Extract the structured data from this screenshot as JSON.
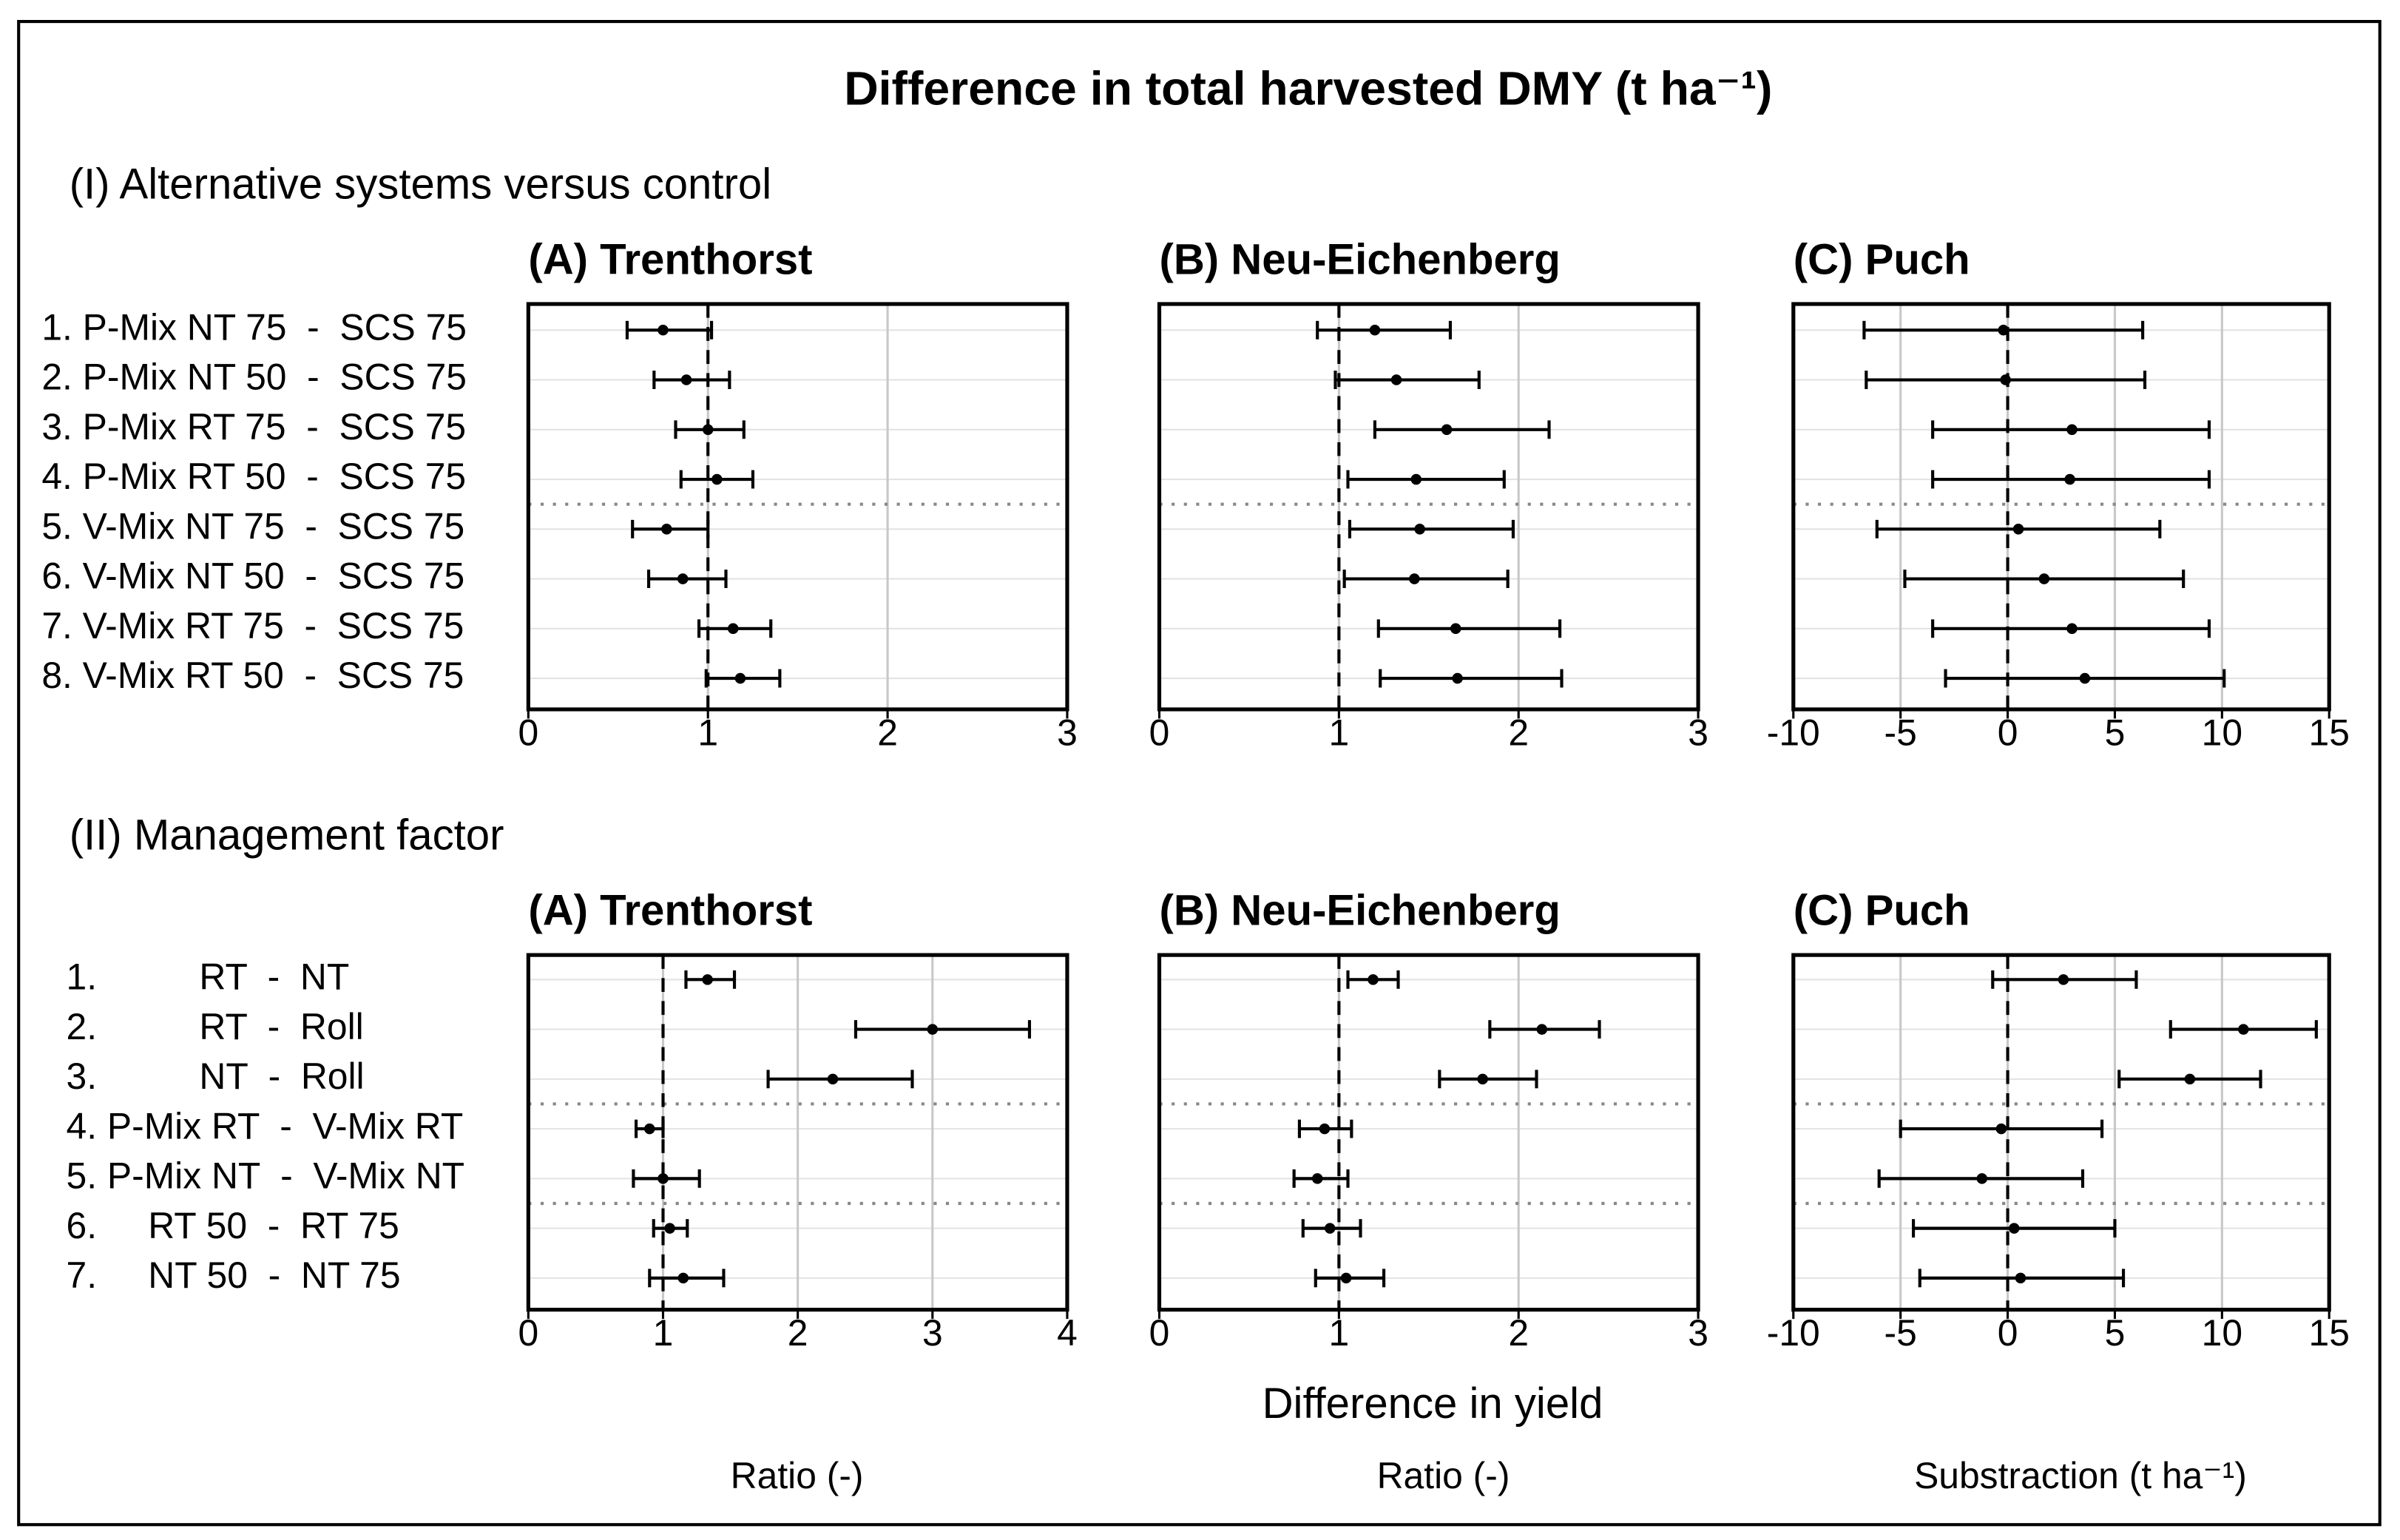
{
  "figure": {
    "title": "Difference in total harvested DMY (t ha⁻¹)",
    "sections": [
      "(I) Alternative systems versus control",
      "(II) Management factor"
    ],
    "xlabel": "Difference in yield",
    "axis_units": [
      "Ratio (-)",
      "Ratio (-)",
      "Substraction (t ha⁻¹)"
    ]
  },
  "chart_data": [
    {
      "type": "errorbar",
      "title": "(A) Trenthorst",
      "categories": [
        "1. P-Mix NT 75  -  SCS 75",
        "2. P-Mix NT 50  -  SCS 75",
        "3. P-Mix RT 75  -  SCS 75",
        "4. P-Mix RT 50  -  SCS 75",
        "5. V-Mix NT 75  -  SCS 75",
        "6. V-Mix NT 50  -  SCS 75",
        "7. V-Mix RT 75  -  SCS 75",
        "8. V-Mix RT 50  -  SCS 75"
      ],
      "values": [
        0.75,
        0.88,
        1.0,
        1.05,
        0.77,
        0.86,
        1.14,
        1.18
      ],
      "lower": [
        0.55,
        0.7,
        0.82,
        0.85,
        0.58,
        0.67,
        0.95,
        0.99
      ],
      "upper": [
        1.02,
        1.12,
        1.2,
        1.25,
        1.0,
        1.1,
        1.35,
        1.4
      ],
      "xlim": [
        0,
        3
      ],
      "xticks": [
        0,
        1,
        2,
        3
      ],
      "refline": 1,
      "groups": [
        4,
        4
      ],
      "grid": true,
      "color": "#000000"
    },
    {
      "type": "errorbar",
      "title": "(B) Neu-Eichenberg",
      "values": [
        1.2,
        1.32,
        1.6,
        1.43,
        1.45,
        1.42,
        1.65,
        1.66
      ],
      "lower": [
        0.88,
        0.98,
        1.2,
        1.05,
        1.06,
        1.03,
        1.22,
        1.23
      ],
      "upper": [
        1.62,
        1.78,
        2.17,
        1.92,
        1.97,
        1.94,
        2.23,
        2.24
      ],
      "xlim": [
        0,
        3
      ],
      "xticks": [
        0,
        1,
        2,
        3
      ],
      "refline": 1,
      "groups": [
        4,
        4
      ],
      "grid": true,
      "color": "#000000"
    },
    {
      "type": "errorbar",
      "title": "(C) Puch",
      "values": [
        -0.2,
        -0.1,
        3.0,
        2.9,
        0.5,
        1.7,
        3.0,
        3.6
      ],
      "lower": [
        -6.7,
        -6.6,
        -3.5,
        -3.5,
        -6.1,
        -4.8,
        -3.5,
        -2.9
      ],
      "upper": [
        6.3,
        6.4,
        9.4,
        9.4,
        7.1,
        8.2,
        9.4,
        10.1
      ],
      "xlim": [
        -10,
        15
      ],
      "xticks": [
        -10,
        -5,
        0,
        5,
        10,
        15
      ],
      "refline": 0,
      "groups": [
        4,
        4
      ],
      "grid": true,
      "color": "#000000"
    },
    {
      "type": "errorbar",
      "title": "(A) Trenthorst",
      "categories": [
        "1.          RT  -  NT",
        "2.          RT  -  Roll",
        "3.          NT  -  Roll",
        "4. P-Mix RT  -  V-Mix RT",
        "5. P-Mix NT  -  V-Mix NT",
        "6.     RT 50  -  RT 75",
        "7.     NT 50  -  NT 75"
      ],
      "values": [
        1.33,
        3.0,
        2.26,
        0.9,
        1.0,
        1.05,
        1.15
      ],
      "lower": [
        1.17,
        2.43,
        1.78,
        0.8,
        0.78,
        0.93,
        0.9
      ],
      "upper": [
        1.53,
        3.72,
        2.85,
        1.0,
        1.27,
        1.18,
        1.45
      ],
      "xlim": [
        0,
        4
      ],
      "xticks": [
        0,
        1,
        2,
        3,
        4
      ],
      "refline": 1,
      "groups": [
        3,
        2,
        2
      ],
      "grid": true,
      "color": "#000000"
    },
    {
      "type": "errorbar",
      "title": "(B) Neu-Eichenberg",
      "values": [
        1.19,
        2.13,
        1.8,
        0.92,
        0.88,
        0.95,
        1.04
      ],
      "lower": [
        1.05,
        1.84,
        1.56,
        0.78,
        0.75,
        0.8,
        0.87
      ],
      "upper": [
        1.33,
        2.45,
        2.1,
        1.07,
        1.05,
        1.12,
        1.25
      ],
      "xlim": [
        0,
        3
      ],
      "xticks": [
        0,
        1,
        2,
        3
      ],
      "refline": 1,
      "groups": [
        3,
        2,
        2
      ],
      "grid": true,
      "color": "#000000"
    },
    {
      "type": "errorbar",
      "title": "(C) Puch",
      "values": [
        2.6,
        11.0,
        8.5,
        -0.3,
        -1.2,
        0.3,
        0.6
      ],
      "lower": [
        -0.7,
        7.6,
        5.2,
        -5.0,
        -6.0,
        -4.4,
        -4.1
      ],
      "upper": [
        6.0,
        14.4,
        11.8,
        4.4,
        3.5,
        5.0,
        5.4
      ],
      "xlim": [
        -10,
        15
      ],
      "xticks": [
        -10,
        -5,
        0,
        5,
        10,
        15
      ],
      "refline": 0,
      "groups": [
        3,
        2,
        2
      ],
      "grid": true,
      "color": "#000000"
    }
  ]
}
